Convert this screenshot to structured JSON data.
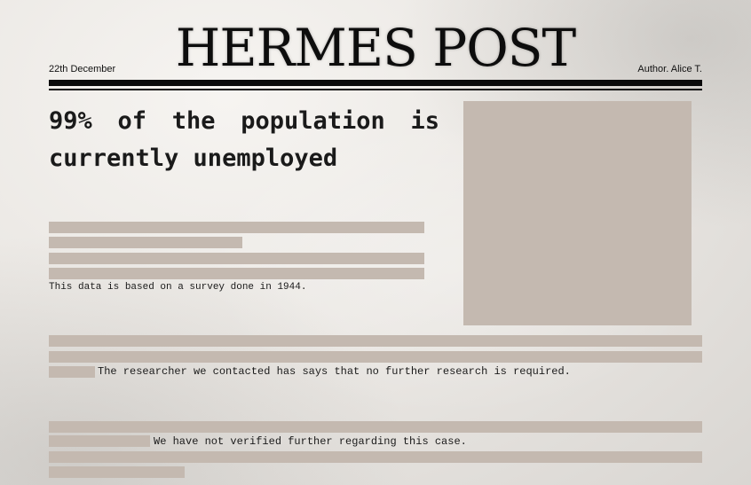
{
  "masthead": {
    "title": "HERMES POST"
  },
  "meta": {
    "date": "22th December",
    "author": "Author. Alice T."
  },
  "article": {
    "headline": "99% of the population is currently unemployed",
    "note_survey": "This data is based on a survey done in 1944.",
    "note_researcher": "The researcher we contacted has says that no further research is required.",
    "note_verified": "We have not verified further regarding this case."
  },
  "colors": {
    "placeholder": "#c4b9b0",
    "ink": "#0d0d0d",
    "paper": "#ebe8e4"
  }
}
